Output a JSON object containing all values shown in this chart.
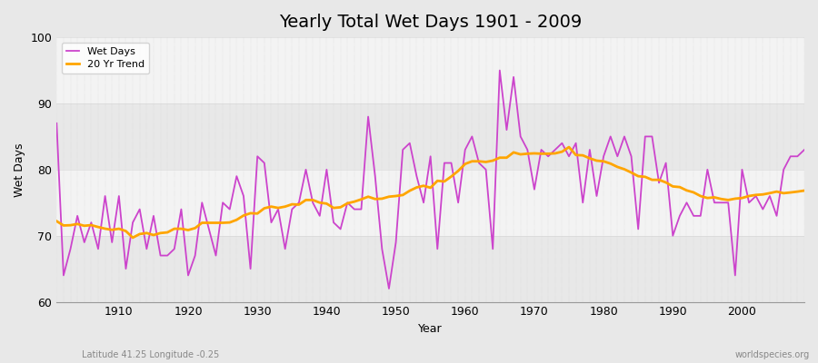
{
  "title": "Yearly Total Wet Days 1901 - 2009",
  "xlabel": "Year",
  "ylabel": "Wet Days",
  "footnote_left": "Latitude 41.25 Longitude -0.25",
  "footnote_right": "worldspecies.org",
  "legend_wet": "Wet Days",
  "legend_trend": "20 Yr Trend",
  "wet_color": "#CC44CC",
  "trend_color": "#FFA500",
  "ylim": [
    60,
    100
  ],
  "xlim": [
    1901,
    2009
  ],
  "bg_color": "#E8E8E8",
  "band_color": "#DCDCDC",
  "years": [
    1901,
    1902,
    1903,
    1904,
    1905,
    1906,
    1907,
    1908,
    1909,
    1910,
    1911,
    1912,
    1913,
    1914,
    1915,
    1916,
    1917,
    1918,
    1919,
    1920,
    1921,
    1922,
    1923,
    1924,
    1925,
    1926,
    1927,
    1928,
    1929,
    1930,
    1931,
    1932,
    1933,
    1934,
    1935,
    1936,
    1937,
    1938,
    1939,
    1940,
    1941,
    1942,
    1943,
    1944,
    1945,
    1946,
    1947,
    1948,
    1949,
    1950,
    1951,
    1952,
    1953,
    1954,
    1955,
    1956,
    1957,
    1958,
    1959,
    1960,
    1961,
    1962,
    1963,
    1964,
    1965,
    1966,
    1967,
    1968,
    1969,
    1970,
    1971,
    1972,
    1973,
    1974,
    1975,
    1976,
    1977,
    1978,
    1979,
    1980,
    1981,
    1982,
    1983,
    1984,
    1985,
    1986,
    1987,
    1988,
    1989,
    1990,
    1991,
    1992,
    1993,
    1994,
    1995,
    1996,
    1997,
    1998,
    1999,
    2000,
    2001,
    2002,
    2003,
    2004,
    2005,
    2006,
    2007,
    2008,
    2009
  ],
  "wet_days": [
    87,
    64,
    68,
    73,
    69,
    72,
    68,
    76,
    69,
    76,
    65,
    72,
    74,
    68,
    73,
    67,
    67,
    68,
    74,
    64,
    67,
    75,
    71,
    67,
    75,
    74,
    79,
    76,
    65,
    82,
    81,
    72,
    74,
    68,
    74,
    75,
    80,
    75,
    73,
    80,
    72,
    71,
    75,
    74,
    74,
    88,
    79,
    68,
    62,
    69,
    83,
    84,
    79,
    75,
    82,
    68,
    81,
    81,
    75,
    83,
    85,
    81,
    80,
    68,
    95,
    86,
    94,
    85,
    83,
    77,
    83,
    82,
    83,
    84,
    82,
    84,
    75,
    83,
    76,
    82,
    85,
    82,
    85,
    82,
    71,
    85,
    85,
    78,
    81,
    70,
    73,
    75,
    73,
    73,
    80,
    75,
    75,
    75,
    64,
    80,
    75,
    76,
    74,
    76,
    73,
    80,
    82,
    82,
    83
  ],
  "grid_color": "#CCCCCC",
  "dot_grid": true,
  "linewidth_wet": 1.3,
  "linewidth_trend": 2.0,
  "title_fontsize": 14,
  "axis_fontsize": 9,
  "legend_fontsize": 8
}
